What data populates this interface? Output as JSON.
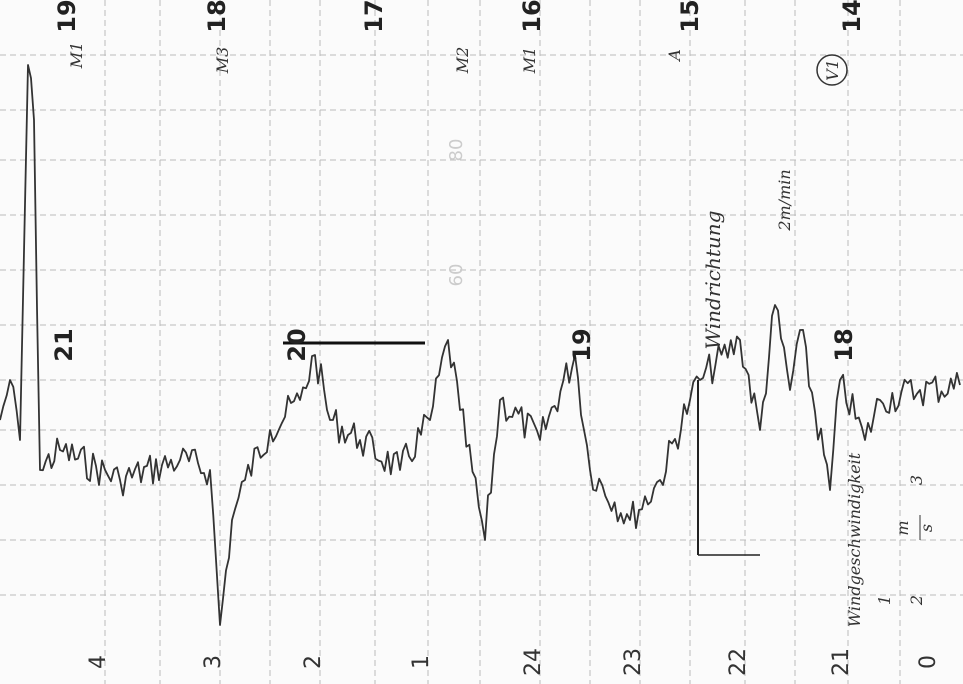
{
  "time_labels": [
    "4",
    "3",
    "2",
    "1",
    "24",
    "23",
    "22",
    "21",
    "0"
  ],
  "top_markers": [
    "19",
    "18",
    "17",
    "16",
    "15",
    "14"
  ],
  "middle_markers": [
    "21",
    "20",
    "19",
    "18"
  ],
  "scale_labels": [
    "80",
    "60"
  ],
  "annotations": {
    "wind_direction": "Windrichtung",
    "wind_speed": "Windgeschwindigkeit",
    "speed_scale": [
      "1",
      "2",
      "3"
    ],
    "speed_unit_top": "m",
    "speed_unit_bottom": "s",
    "paper_speed": "2m/min",
    "circle_label": "V1",
    "handwritten": [
      "M1",
      "M3",
      "M2",
      "M1",
      "A"
    ]
  }
}
